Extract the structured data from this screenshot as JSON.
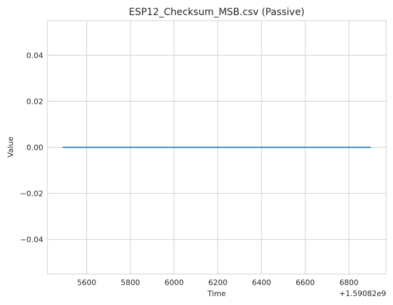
{
  "chart_data": {
    "type": "line",
    "title": "ESP12_Checksum_MSB.csv (Passive)",
    "xlabel": "Time",
    "ylabel": "Value",
    "x_offset_label": "+1.59082e9",
    "x": [
      5490,
      6900
    ],
    "series": [
      {
        "values": [
          0.0,
          0.0
        ],
        "color": "#1f77b4"
      }
    ],
    "xlim": [
      5420,
      6970
    ],
    "ylim": [
      -0.055,
      0.055
    ],
    "xticks": [
      5600,
      5800,
      6000,
      6200,
      6400,
      6600,
      6800
    ],
    "xtick_labels": [
      "5600",
      "5800",
      "6000",
      "6200",
      "6400",
      "6600",
      "6800"
    ],
    "yticks": [
      -0.04,
      -0.02,
      0.0,
      0.02,
      0.04
    ],
    "ytick_labels": [
      "−0.04",
      "−0.02",
      "0.00",
      "0.02",
      "0.04"
    ],
    "grid": true
  }
}
